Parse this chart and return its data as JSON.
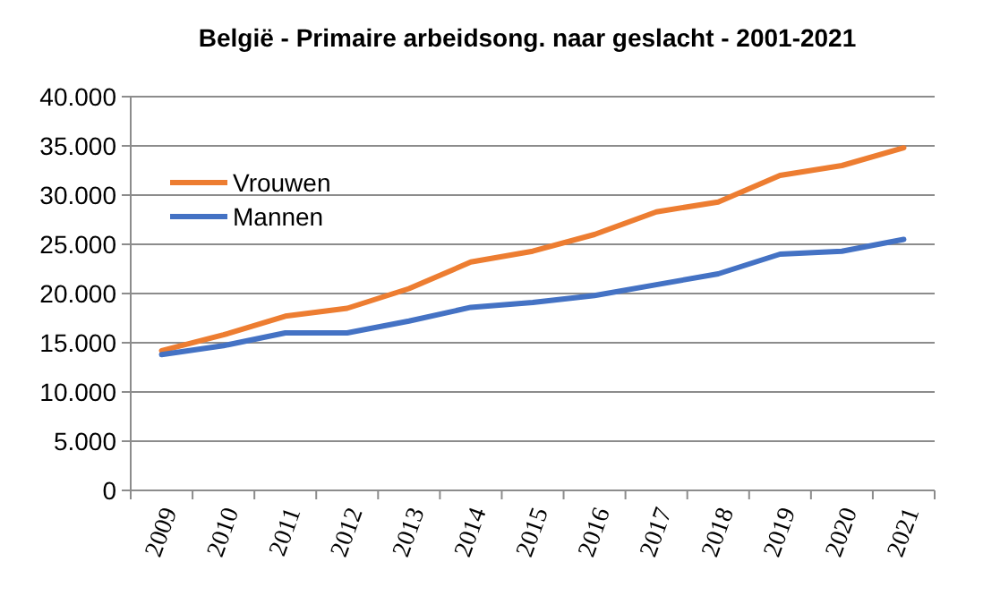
{
  "chart_data": {
    "type": "line",
    "title": "België - Primaire arbeidsong. naar geslacht - 2001-2021",
    "categories": [
      "2009",
      "2010",
      "2011",
      "2012",
      "2013",
      "2014",
      "2015",
      "2016",
      "2017",
      "2018",
      "2019",
      "2020",
      "2021"
    ],
    "series": [
      {
        "name": "Vrouwen",
        "color": "#ed7d31",
        "values": [
          14200,
          15800,
          17700,
          18500,
          20500,
          23200,
          24300,
          26000,
          28300,
          29300,
          32000,
          33000,
          34800
        ]
      },
      {
        "name": "Mannen",
        "color": "#4472c4",
        "values": [
          13800,
          14700,
          16000,
          16000,
          17200,
          18600,
          19100,
          19800,
          20900,
          22000,
          24000,
          24300,
          25500
        ]
      }
    ],
    "ylim": [
      0,
      40000
    ],
    "yticks": [
      {
        "value": 0,
        "label": "0"
      },
      {
        "value": 5000,
        "label": "5.000"
      },
      {
        "value": 10000,
        "label": "10.000"
      },
      {
        "value": 15000,
        "label": "15.000"
      },
      {
        "value": 20000,
        "label": "20.000"
      },
      {
        "value": 25000,
        "label": "25.000"
      },
      {
        "value": 30000,
        "label": "30.000"
      },
      {
        "value": 35000,
        "label": "35.000"
      },
      {
        "value": 40000,
        "label": "40.000"
      }
    ],
    "grid": "y",
    "legend": "top left",
    "marker": "none",
    "line_style": "solid"
  }
}
